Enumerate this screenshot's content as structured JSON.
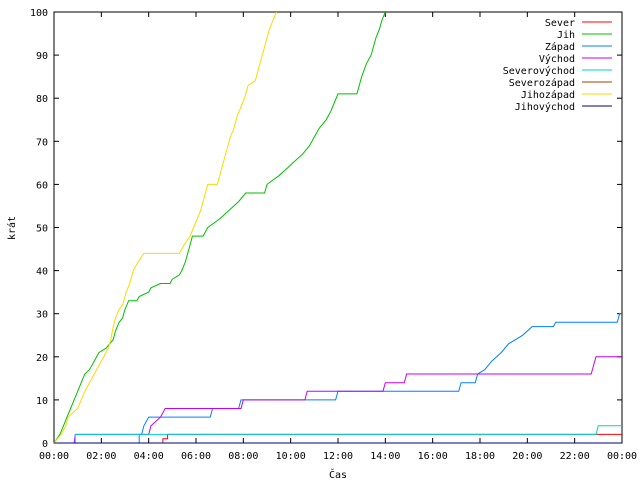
{
  "chart_data": {
    "type": "line",
    "title": "",
    "xlabel": "Čas",
    "ylabel": "krát",
    "xlim": [
      0,
      24
    ],
    "ylim": [
      0,
      100
    ],
    "x_ticks": [
      "00:00",
      "02:00",
      "04:00",
      "06:00",
      "08:00",
      "10:00",
      "12:00",
      "14:00",
      "16:00",
      "18:00",
      "20:00",
      "22:00",
      "00:00"
    ],
    "y_ticks": [
      0,
      10,
      20,
      30,
      40,
      50,
      60,
      70,
      80,
      90,
      100
    ],
    "legend_position": "top-right",
    "series": [
      {
        "name": "Sever",
        "color": "#ff0000",
        "points": [
          [
            0,
            0
          ],
          [
            4.6,
            0
          ],
          [
            4.6,
            1
          ],
          [
            4.8,
            1
          ],
          [
            4.8,
            2
          ],
          [
            6.9,
            2
          ],
          [
            6.9,
            2
          ],
          [
            23.0,
            2
          ],
          [
            23.0,
            2
          ],
          [
            24,
            2
          ]
        ]
      },
      {
        "name": "Jih",
        "color": "#00c000",
        "points": [
          [
            0,
            0
          ],
          [
            0.25,
            2
          ],
          [
            0.4,
            4
          ],
          [
            0.55,
            6
          ],
          [
            0.7,
            8
          ],
          [
            0.85,
            10
          ],
          [
            1.0,
            12
          ],
          [
            1.15,
            14
          ],
          [
            1.3,
            16
          ],
          [
            1.5,
            17
          ],
          [
            1.7,
            19
          ],
          [
            1.9,
            21
          ],
          [
            2.2,
            22
          ],
          [
            2.5,
            24
          ],
          [
            2.6,
            26
          ],
          [
            2.75,
            28
          ],
          [
            2.9,
            29
          ],
          [
            3.0,
            31
          ],
          [
            3.15,
            33
          ],
          [
            3.5,
            33
          ],
          [
            3.6,
            34
          ],
          [
            4.0,
            35
          ],
          [
            4.1,
            36
          ],
          [
            4.5,
            37
          ],
          [
            4.9,
            37
          ],
          [
            5.0,
            38
          ],
          [
            5.3,
            39
          ],
          [
            5.4,
            40
          ],
          [
            5.55,
            42
          ],
          [
            5.65,
            44
          ],
          [
            5.75,
            46
          ],
          [
            5.85,
            48
          ],
          [
            6.3,
            48
          ],
          [
            6.5,
            50
          ],
          [
            7.0,
            52
          ],
          [
            7.4,
            54
          ],
          [
            7.8,
            56
          ],
          [
            8.1,
            58
          ],
          [
            8.9,
            58
          ],
          [
            9.0,
            60
          ],
          [
            9.5,
            62
          ],
          [
            9.9,
            64
          ],
          [
            10.1,
            65
          ],
          [
            10.5,
            67
          ],
          [
            10.8,
            69
          ],
          [
            11.0,
            71
          ],
          [
            11.2,
            73
          ],
          [
            11.5,
            75
          ],
          [
            11.7,
            77
          ],
          [
            11.85,
            79
          ],
          [
            12.0,
            81
          ],
          [
            12.8,
            81
          ],
          [
            12.9,
            83
          ],
          [
            13.0,
            85
          ],
          [
            13.2,
            88
          ],
          [
            13.4,
            90
          ],
          [
            13.5,
            92
          ],
          [
            13.6,
            94
          ],
          [
            13.75,
            96
          ],
          [
            13.85,
            98
          ],
          [
            14.0,
            100
          ]
        ]
      },
      {
        "name": "Západ",
        "color": "#0080ff",
        "points": [
          [
            0,
            0
          ],
          [
            3.6,
            0
          ],
          [
            3.6,
            2
          ],
          [
            3.7,
            2
          ],
          [
            3.8,
            4
          ],
          [
            4.0,
            6
          ],
          [
            6.6,
            6
          ],
          [
            6.7,
            8
          ],
          [
            7.8,
            8
          ],
          [
            7.9,
            10
          ],
          [
            11.9,
            10
          ],
          [
            12.0,
            12
          ],
          [
            17.1,
            12
          ],
          [
            17.2,
            14
          ],
          [
            17.8,
            14
          ],
          [
            17.9,
            16
          ],
          [
            18.2,
            17
          ],
          [
            18.5,
            19
          ],
          [
            18.9,
            21
          ],
          [
            19.2,
            23
          ],
          [
            19.8,
            25
          ],
          [
            20.2,
            27
          ],
          [
            21.1,
            27
          ],
          [
            21.2,
            28
          ],
          [
            23.8,
            28
          ],
          [
            23.9,
            30
          ],
          [
            24,
            30
          ]
        ]
      },
      {
        "name": "Východ",
        "color": "#c000ff",
        "points": [
          [
            0,
            0
          ],
          [
            0.85,
            0
          ],
          [
            0.9,
            2
          ],
          [
            4.0,
            2
          ],
          [
            4.1,
            4
          ],
          [
            4.5,
            6
          ],
          [
            4.7,
            8
          ],
          [
            7.9,
            8
          ],
          [
            8.0,
            10
          ],
          [
            10.6,
            10
          ],
          [
            10.7,
            12
          ],
          [
            13.9,
            12
          ],
          [
            14.0,
            14
          ],
          [
            14.8,
            14
          ],
          [
            14.9,
            16
          ],
          [
            22.7,
            16
          ],
          [
            22.8,
            18
          ],
          [
            22.9,
            20
          ],
          [
            24,
            20
          ]
        ]
      },
      {
        "name": "Severovýchod",
        "color": "#00d0d0",
        "points": [
          [
            0,
            0
          ],
          [
            0.9,
            0
          ],
          [
            0.9,
            2
          ],
          [
            3.4,
            2
          ],
          [
            3.5,
            2
          ],
          [
            22.9,
            2
          ],
          [
            23.0,
            4
          ],
          [
            24,
            4
          ]
        ]
      },
      {
        "name": "Severozápad",
        "color": "#a04000",
        "points": [
          [
            0,
            0
          ],
          [
            24,
            0
          ]
        ]
      },
      {
        "name": "Jihozápad",
        "color": "#ffd700",
        "points": [
          [
            0,
            0
          ],
          [
            0.3,
            2
          ],
          [
            0.5,
            4
          ],
          [
            0.6,
            6
          ],
          [
            1.0,
            8
          ],
          [
            1.15,
            10
          ],
          [
            1.3,
            12
          ],
          [
            1.5,
            14
          ],
          [
            1.7,
            16
          ],
          [
            1.9,
            18
          ],
          [
            2.1,
            20
          ],
          [
            2.3,
            22
          ],
          [
            2.4,
            24
          ],
          [
            2.5,
            27
          ],
          [
            2.6,
            29
          ],
          [
            2.75,
            31
          ],
          [
            2.9,
            32
          ],
          [
            3.05,
            35
          ],
          [
            3.2,
            37
          ],
          [
            3.35,
            40
          ],
          [
            3.55,
            42
          ],
          [
            3.8,
            44
          ],
          [
            5.3,
            44
          ],
          [
            5.5,
            46
          ],
          [
            5.75,
            48
          ],
          [
            5.9,
            50
          ],
          [
            6.05,
            52
          ],
          [
            6.2,
            54
          ],
          [
            6.35,
            57
          ],
          [
            6.5,
            60
          ],
          [
            6.9,
            60
          ],
          [
            7.0,
            62
          ],
          [
            7.15,
            65
          ],
          [
            7.3,
            68
          ],
          [
            7.45,
            71
          ],
          [
            7.6,
            73
          ],
          [
            7.75,
            76
          ],
          [
            7.9,
            78
          ],
          [
            8.05,
            80
          ],
          [
            8.2,
            83
          ],
          [
            8.5,
            84
          ],
          [
            8.65,
            87
          ],
          [
            8.8,
            90
          ],
          [
            8.95,
            93
          ],
          [
            9.1,
            96
          ],
          [
            9.25,
            98
          ],
          [
            9.4,
            100
          ]
        ]
      },
      {
        "name": "Jihovýchod",
        "color": "#000080",
        "points": [
          [
            0,
            0
          ],
          [
            24,
            0
          ]
        ]
      }
    ]
  }
}
